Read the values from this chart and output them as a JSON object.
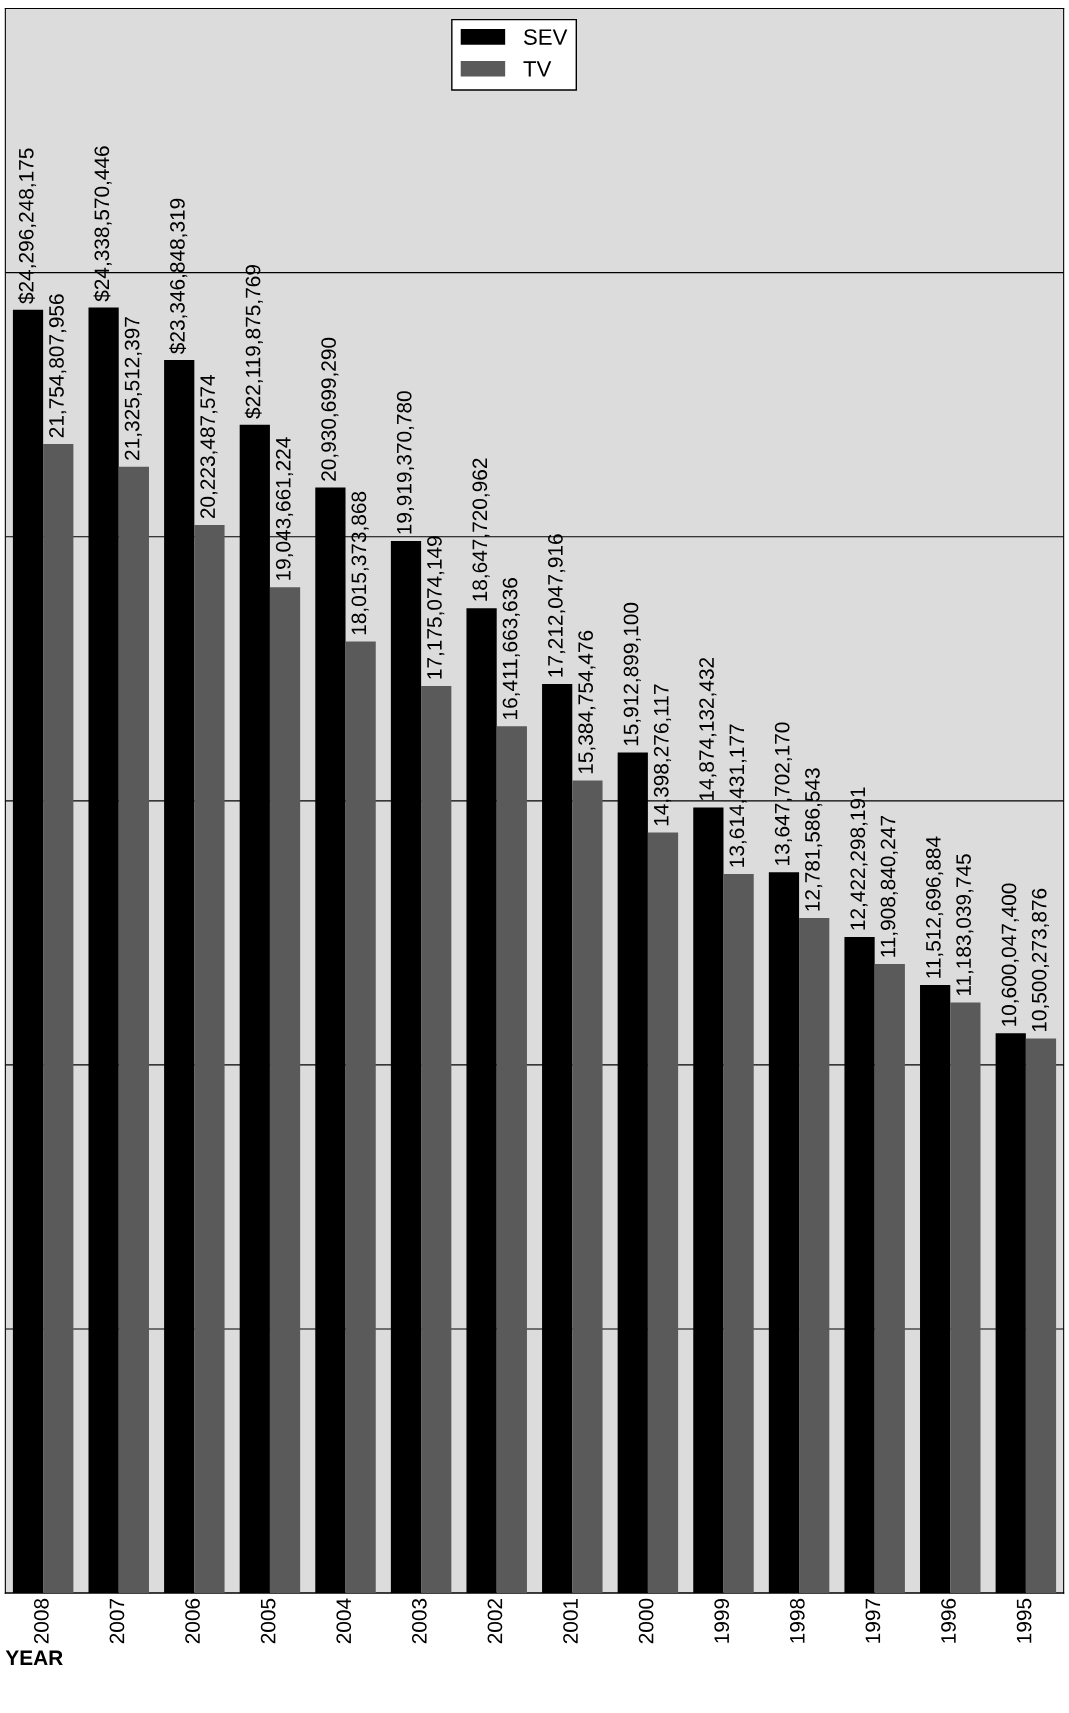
{
  "chart_data": {
    "type": "bar",
    "xlabel": "YEAR",
    "categories": [
      "2008",
      "2007",
      "2006",
      "2005",
      "2004",
      "2003",
      "2002",
      "2001",
      "2000",
      "1999",
      "1998",
      "1997",
      "1996",
      "1995"
    ],
    "series": [
      {
        "name": "SEV",
        "color": "#000000",
        "values": [
          24296248175,
          24338570446,
          23346848319,
          22119875769,
          20930699290,
          19919370780,
          18647720962,
          17212047916,
          15912899100,
          14874132432,
          13647702170,
          12422298191,
          11512696884,
          10600047400
        ],
        "value_labels": [
          "$24,296,248,175",
          "$24,338,570,446",
          "$23,346,848,319",
          "$22,119,875,769",
          "20,930,699,290",
          "19,919,370,780",
          "18,647,720,962",
          "17,212,047,916",
          "15,912,899,100",
          "14,874,132,432",
          "13,647,702,170",
          "12,422,298,191",
          "11,512,696,884",
          "10,600,047,400"
        ]
      },
      {
        "name": "TV",
        "color": "#5a5a5a",
        "values": [
          21754807956,
          21325512397,
          20223487574,
          19043661224,
          18015373868,
          17175074149,
          16411663636,
          15384754476,
          14398276117,
          13614431177,
          12781586543,
          11908840247,
          11183039745,
          10500273876
        ],
        "value_labels": [
          "21,754,807,956",
          "21,325,512,397",
          "20,223,487,574",
          "19,043,661,224",
          "18,015,373,868",
          "17,175,074,149",
          "16,411,663,636",
          "15,384,754,476",
          "14,398,276,117",
          "13,614,431,177",
          "12,781,586,543",
          "11,908,840,247",
          "11,183,039,745",
          "10,500,273,876"
        ]
      }
    ],
    "ylim": [
      0,
      30000000000
    ],
    "yticks": [
      {
        "value": 0,
        "label": null
      },
      {
        "value": 5000000000,
        "label": null
      },
      {
        "value": 10000000000,
        "label": null
      },
      {
        "value": 15000000000,
        "label": null
      },
      {
        "value": 20000000000,
        "label": null
      },
      {
        "value": 25000000000,
        "label": null
      },
      {
        "value": 30000000000,
        "label": null
      }
    ],
    "grid": "y",
    "legend": "top right",
    "tick_labels": "x"
  }
}
